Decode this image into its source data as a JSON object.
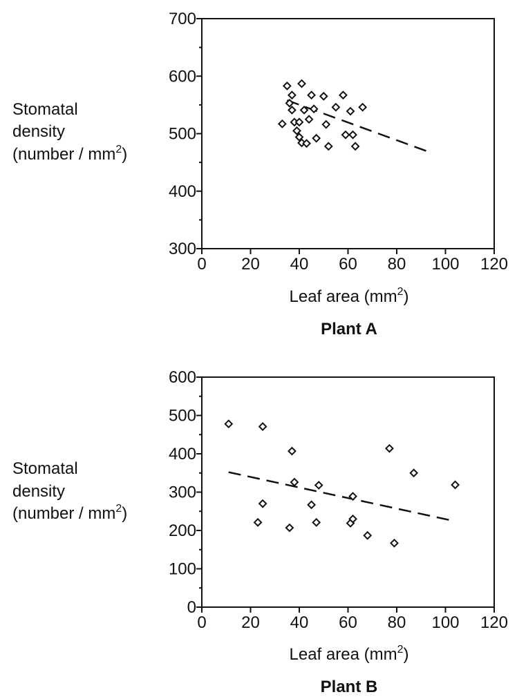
{
  "chart_data": [
    {
      "type": "scatter",
      "title": "Plant A",
      "xlabel": "Leaf area (mm2)",
      "ylabel": "Stomatal density (number / mm2)",
      "ylabel_lines": [
        "Stomatal",
        "density",
        "(number / mm",
        "2",
        ")"
      ],
      "xlabel_parts": [
        "Leaf area (mm",
        "2",
        ")"
      ],
      "xlim": [
        0,
        120
      ],
      "ylim": [
        300,
        700
      ],
      "xticks": [
        0,
        20,
        40,
        60,
        80,
        100,
        120
      ],
      "yticks": [
        300,
        400,
        500,
        600,
        700
      ],
      "grid": false,
      "points": [
        {
          "x": 33,
          "y": 517
        },
        {
          "x": 35,
          "y": 583
        },
        {
          "x": 36,
          "y": 553
        },
        {
          "x": 37,
          "y": 567
        },
        {
          "x": 37,
          "y": 541
        },
        {
          "x": 38,
          "y": 520
        },
        {
          "x": 39,
          "y": 505
        },
        {
          "x": 40,
          "y": 520
        },
        {
          "x": 40,
          "y": 494
        },
        {
          "x": 41,
          "y": 587
        },
        {
          "x": 41,
          "y": 484
        },
        {
          "x": 42,
          "y": 541
        },
        {
          "x": 43,
          "y": 483
        },
        {
          "x": 44,
          "y": 525
        },
        {
          "x": 45,
          "y": 567
        },
        {
          "x": 46,
          "y": 543
        },
        {
          "x": 47,
          "y": 492
        },
        {
          "x": 50,
          "y": 565
        },
        {
          "x": 51,
          "y": 516
        },
        {
          "x": 52,
          "y": 478
        },
        {
          "x": 55,
          "y": 546
        },
        {
          "x": 58,
          "y": 567
        },
        {
          "x": 59,
          "y": 498
        },
        {
          "x": 61,
          "y": 539
        },
        {
          "x": 62,
          "y": 498
        },
        {
          "x": 63,
          "y": 478
        },
        {
          "x": 66,
          "y": 546
        }
      ],
      "trendline": {
        "x": [
          35,
          94
        ],
        "y": [
          558,
          467
        ]
      }
    },
    {
      "type": "scatter",
      "title": "Plant B",
      "xlabel": "Leaf area (mm2)",
      "ylabel": "Stomatal density (number / mm2)",
      "ylabel_lines": [
        "Stomatal",
        "density",
        "(number / mm",
        "2",
        ")"
      ],
      "xlabel_parts": [
        "Leaf area (mm",
        "2",
        ")"
      ],
      "xlim": [
        0,
        120
      ],
      "ylim": [
        0,
        600
      ],
      "xticks": [
        0,
        20,
        40,
        60,
        80,
        100,
        120
      ],
      "yticks": [
        0,
        100,
        200,
        300,
        400,
        500,
        600
      ],
      "grid": false,
      "points": [
        {
          "x": 11,
          "y": 478
        },
        {
          "x": 23,
          "y": 221
        },
        {
          "x": 25,
          "y": 270
        },
        {
          "x": 25,
          "y": 471
        },
        {
          "x": 36,
          "y": 207
        },
        {
          "x": 37,
          "y": 407
        },
        {
          "x": 38,
          "y": 326
        },
        {
          "x": 45,
          "y": 267
        },
        {
          "x": 47,
          "y": 221
        },
        {
          "x": 48,
          "y": 318
        },
        {
          "x": 61,
          "y": 219
        },
        {
          "x": 62,
          "y": 230
        },
        {
          "x": 62,
          "y": 289
        },
        {
          "x": 68,
          "y": 187
        },
        {
          "x": 77,
          "y": 414
        },
        {
          "x": 79,
          "y": 167
        },
        {
          "x": 87,
          "y": 350
        },
        {
          "x": 104,
          "y": 319
        }
      ],
      "trendline": {
        "x": [
          11,
          104
        ],
        "y": [
          352,
          224
        ]
      }
    }
  ]
}
